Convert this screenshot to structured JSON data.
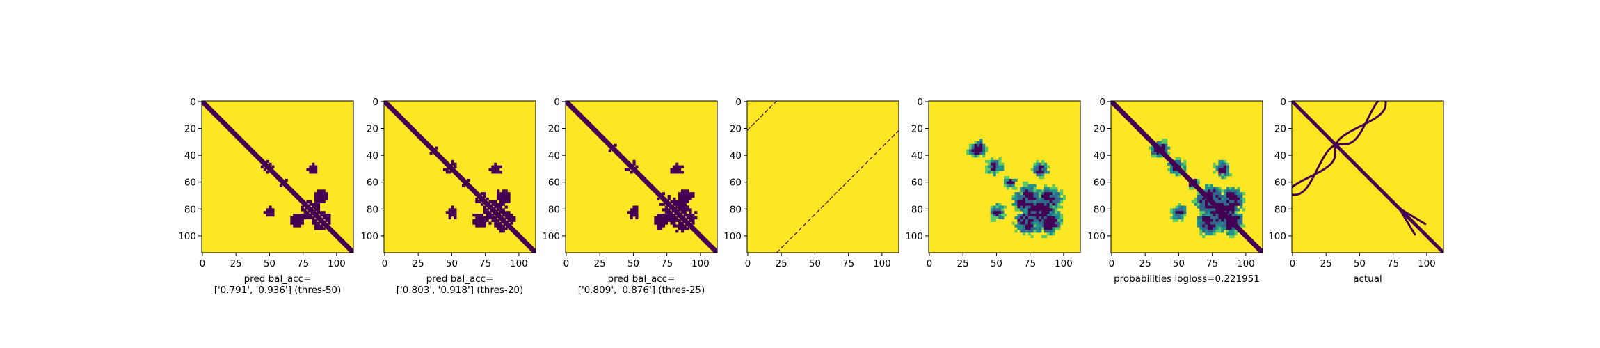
{
  "colors": {
    "background": "#fde725",
    "dark": "#440154",
    "mid": "#21918c",
    "light": "#5ec962"
  },
  "chart_data": [
    {
      "type": "heatmap",
      "panel": "thres-50",
      "matrix_size": 113,
      "x_ticks": [
        0,
        25,
        50,
        75,
        100
      ],
      "y_ticks": [
        0,
        20,
        40,
        60,
        80,
        100
      ],
      "xlabel_lines": [
        "pred bal_acc=",
        "['0.791', '0.936'] (thres-50)"
      ],
      "style": "binary",
      "diagonal": true,
      "anti_diagonal": false,
      "speckle": 0.15
    },
    {
      "type": "heatmap",
      "panel": "thres-20",
      "matrix_size": 113,
      "x_ticks": [
        0,
        25,
        50,
        75,
        100
      ],
      "y_ticks": [
        0,
        20,
        40,
        60,
        80,
        100
      ],
      "xlabel_lines": [
        "pred bal_acc=",
        "['0.803', '0.918'] (thres-20)"
      ],
      "style": "binary",
      "diagonal": true,
      "anti_diagonal": false,
      "speckle": 0.25
    },
    {
      "type": "heatmap",
      "panel": "thres-25",
      "matrix_size": 113,
      "x_ticks": [
        0,
        25,
        50,
        75,
        100
      ],
      "y_ticks": [
        0,
        20,
        40,
        60,
        80,
        100
      ],
      "xlabel_lines": [
        "pred bal_acc=",
        "['0.809', '0.876'] (thres-25)"
      ],
      "style": "binary",
      "diagonal": true,
      "anti_diagonal": false,
      "speckle": 0.35
    },
    {
      "type": "heatmap",
      "panel": "anti-diagonal",
      "matrix_size": 113,
      "x_ticks": [
        0,
        25,
        50,
        75,
        100
      ],
      "y_ticks": [
        0,
        20,
        40,
        60,
        80,
        100
      ],
      "xlabel_lines": [],
      "style": "sparse",
      "diagonal": false,
      "anti_diagonal": true,
      "speckle": 0
    },
    {
      "type": "heatmap",
      "panel": "probabilities-no-diagonal",
      "matrix_size": 113,
      "x_ticks": [
        0,
        25,
        50,
        75,
        100
      ],
      "y_ticks": [
        0,
        20,
        40,
        60,
        80,
        100
      ],
      "xlabel_lines": [],
      "style": "continuous",
      "diagonal": false,
      "anti_diagonal": false,
      "speckle": 0.4
    },
    {
      "type": "heatmap",
      "panel": "probabilities",
      "matrix_size": 113,
      "x_ticks": [
        0,
        25,
        50,
        75,
        100
      ],
      "y_ticks": [
        0,
        20,
        40,
        60,
        80,
        100
      ],
      "xlabel_lines": [
        "probabilities logloss=0.221951"
      ],
      "style": "continuous",
      "diagonal": true,
      "anti_diagonal": false,
      "speckle": 0.4
    },
    {
      "type": "heatmap",
      "panel": "actual",
      "matrix_size": 113,
      "x_ticks": [
        0,
        25,
        50,
        75,
        100
      ],
      "y_ticks": [
        0,
        20,
        40,
        60,
        80,
        100
      ],
      "xlabel_lines": [
        "actual"
      ],
      "style": "actual",
      "diagonal": true,
      "anti_diagonal": false,
      "speckle": 0
    }
  ]
}
